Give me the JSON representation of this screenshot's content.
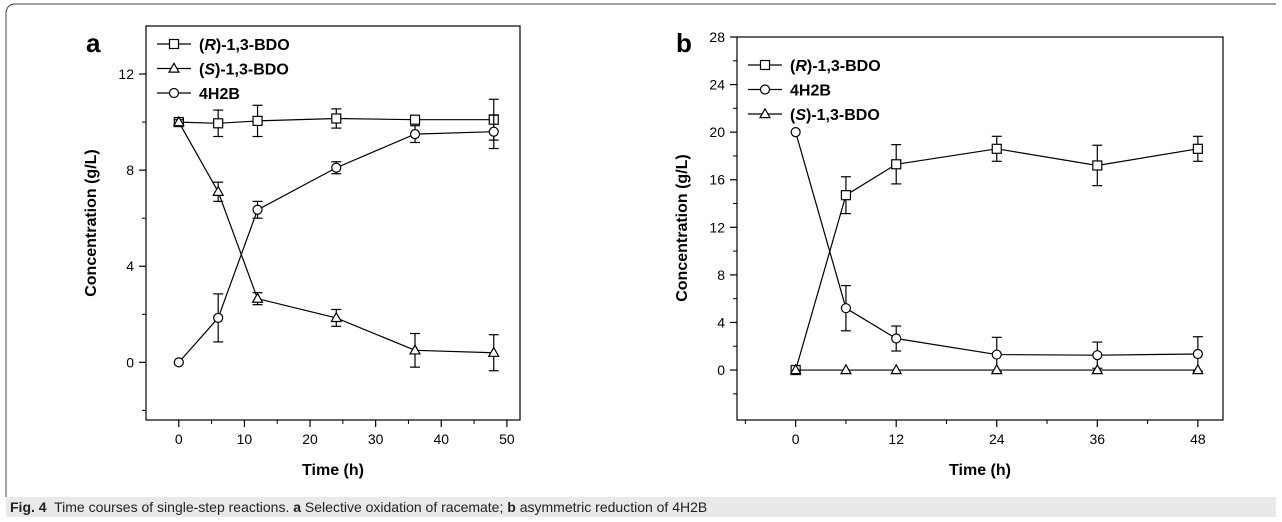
{
  "caption": {
    "fig_label": "Fig. 4",
    "text": "Time courses of single-step reactions.",
    "a_label": "a",
    "a_text": "Selective oxidation of racemate;",
    "b_label": "b",
    "b_text": "asymmetric reduction of 4H2B"
  },
  "chart_data": [
    {
      "panel": "a",
      "type": "line",
      "xlabel": "Time (h)",
      "ylabel": "Concentration (g/L)",
      "xlim": [
        -5,
        52
      ],
      "ylim": [
        -2.4,
        14
      ],
      "xticks": [
        0,
        10,
        20,
        30,
        40,
        50
      ],
      "yticks": [
        0,
        4,
        8,
        12
      ],
      "legend_position": "top-left",
      "series": [
        {
          "name": "(R)-1,3-BDO",
          "marker": "square",
          "x": [
            0,
            6,
            12,
            24,
            36,
            48
          ],
          "y": [
            10.0,
            9.95,
            10.05,
            10.15,
            10.1,
            10.1
          ],
          "err": [
            0.1,
            0.55,
            0.65,
            0.4,
            0.15,
            0.85
          ]
        },
        {
          "name": "(S)-1,3-BDO",
          "marker": "triangle",
          "x": [
            0,
            6,
            12,
            24,
            36,
            48
          ],
          "y": [
            10.0,
            7.1,
            2.65,
            1.85,
            0.5,
            0.4
          ],
          "err": [
            0.1,
            0.4,
            0.25,
            0.35,
            0.7,
            0.75
          ]
        },
        {
          "name": "4H2B",
          "marker": "circle",
          "x": [
            0,
            6,
            12,
            24,
            36,
            48
          ],
          "y": [
            0.0,
            1.85,
            6.35,
            8.1,
            9.5,
            9.6
          ],
          "err": [
            0.0,
            1.0,
            0.35,
            0.25,
            0.35,
            0.7
          ]
        }
      ]
    },
    {
      "panel": "b",
      "type": "line",
      "xlabel": "Time (h)",
      "ylabel": "Concentration (g/L)",
      "xlim": [
        -7,
        51
      ],
      "ylim": [
        -4.2,
        28
      ],
      "xticks": [
        0,
        12,
        24,
        36,
        48
      ],
      "yticks": [
        0,
        4,
        8,
        12,
        16,
        20,
        24,
        28
      ],
      "legend_position": "top-left",
      "series": [
        {
          "name": "(R)-1,3-BDO",
          "marker": "square",
          "x": [
            0,
            6,
            12,
            24,
            36,
            48
          ],
          "y": [
            0.0,
            14.7,
            17.3,
            18.6,
            17.2,
            18.6
          ],
          "err": [
            0.0,
            1.55,
            1.65,
            1.05,
            1.7,
            1.05
          ]
        },
        {
          "name": "4H2B",
          "marker": "circle",
          "x": [
            0,
            6,
            12,
            24,
            36,
            48
          ],
          "y": [
            20.0,
            5.2,
            2.65,
            1.3,
            1.25,
            1.35
          ],
          "err": [
            0.0,
            1.9,
            1.05,
            1.45,
            1.1,
            1.45
          ]
        },
        {
          "name": "(S)-1,3-BDO",
          "marker": "triangle",
          "x": [
            0,
            6,
            12,
            24,
            36,
            48
          ],
          "y": [
            0.0,
            0.0,
            0.0,
            0.0,
            0.0,
            0.0
          ],
          "err": [
            0.0,
            0.0,
            0.0,
            0.0,
            0.0,
            0.0
          ]
        }
      ]
    }
  ]
}
